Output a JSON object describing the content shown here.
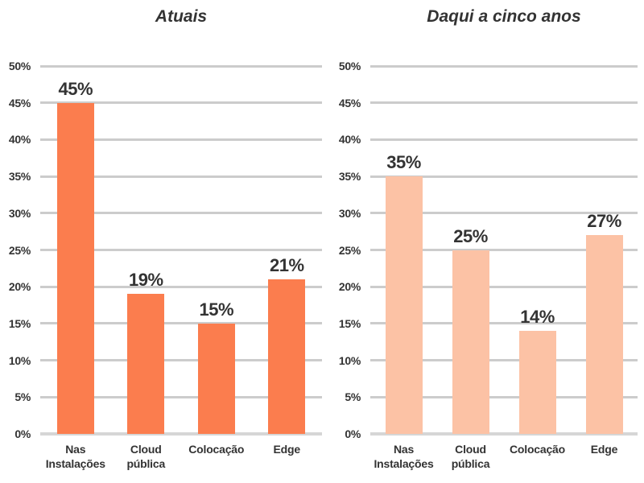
{
  "page": {
    "background": "#ffffff",
    "text_color": "#333333",
    "grid_color": "#cccccc",
    "baseline_color": "#d6d6d6"
  },
  "chart_data": [
    {
      "type": "bar",
      "title": "Atuais",
      "categories": [
        "Nas Instalações",
        "Cloud pública",
        "Colocação",
        "Edge"
      ],
      "values": [
        45,
        19,
        15,
        21
      ],
      "bar_labels": [
        "45%",
        "19%",
        "15%",
        "21%"
      ],
      "bar_color": "#fb7d4e",
      "xlabel": "",
      "ylabel": "",
      "ylim": [
        0,
        50
      ],
      "yticks": [
        0,
        5,
        10,
        15,
        20,
        25,
        30,
        35,
        40,
        45,
        50
      ],
      "ytick_labels": [
        "0%",
        "5%",
        "10%",
        "15%",
        "20%",
        "25%",
        "30%",
        "35%",
        "40%",
        "45%",
        "50%"
      ],
      "grid": true,
      "legend": false
    },
    {
      "type": "bar",
      "title": "Daqui a cinco anos",
      "categories": [
        "Nas Instalações",
        "Cloud pública",
        "Colocação",
        "Edge"
      ],
      "values": [
        35,
        25,
        14,
        27
      ],
      "bar_labels": [
        "35%",
        "25%",
        "14%",
        "27%"
      ],
      "bar_color": "#fcc2a5",
      "xlabel": "",
      "ylabel": "",
      "ylim": [
        0,
        50
      ],
      "yticks": [
        0,
        5,
        10,
        15,
        20,
        25,
        30,
        35,
        40,
        45,
        50
      ],
      "ytick_labels": [
        "0%",
        "5%",
        "10%",
        "15%",
        "20%",
        "25%",
        "30%",
        "35%",
        "40%",
        "45%",
        "50%"
      ],
      "grid": true,
      "legend": false
    }
  ]
}
